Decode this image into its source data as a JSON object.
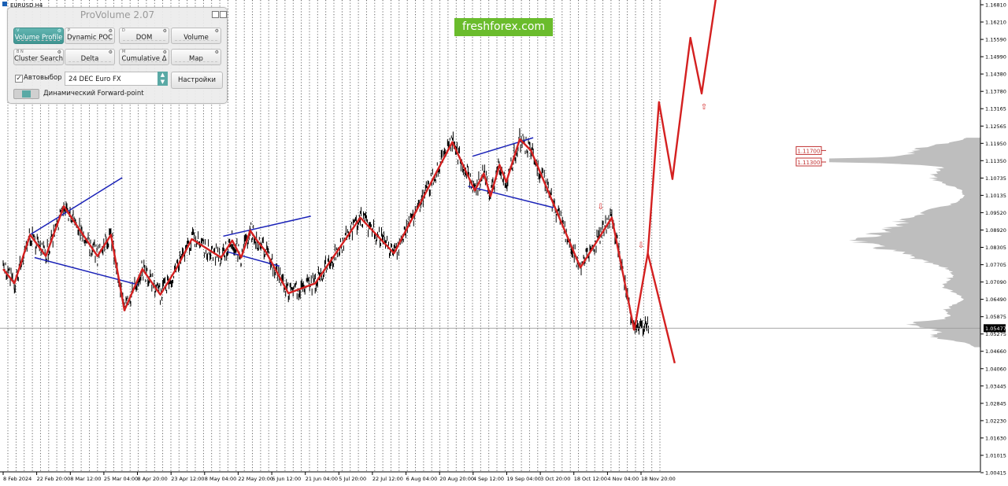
{
  "chart_data": {
    "type": "line",
    "title": "EURUSD,H4",
    "symbol_label": "EURUSD,H4",
    "ylim": [
      1.00415,
      1.1681
    ],
    "price_ticks": [
      "1.16810",
      "1.16210",
      "1.15590",
      "1.14990",
      "1.14380",
      "1.13780",
      "1.13165",
      "1.12565",
      "1.11950",
      "1.11350",
      "1.10735",
      "1.10135",
      "1.09520",
      "1.08920",
      "1.08305",
      "1.07705",
      "1.07090",
      "1.06490",
      "1.05875",
      "1.05275",
      "1.04660",
      "1.04060",
      "1.03445",
      "1.02845",
      "1.02230",
      "1.01630",
      "1.01015",
      "1.00415"
    ],
    "time_ticks": [
      "8 Feb 2024",
      "22 Feb 20:00",
      "8 Mar 12:00",
      "25 Mar 04:00",
      "8 Apr 20:00",
      "23 Apr 12:00",
      "8 May 04:00",
      "22 May 20:00",
      "6 Jun 12:00",
      "21 Jun 04:00",
      "5 Jul 20:00",
      "22 Jul 12:00",
      "6 Aug 04:00",
      "20 Aug 20:00",
      "4 Sep 12:00",
      "19 Sep 04:00",
      "3 Oct 20:00",
      "18 Oct 12:00",
      "4 Nov 04:00",
      "18 Nov 20:00"
    ],
    "current_price": "1.05477",
    "levels": [
      {
        "label": "1.11700",
        "price": 1.117
      },
      {
        "label": "1.11300",
        "price": 1.113
      }
    ],
    "zigzag_wave": {
      "name": "",
      "color": "#d42020",
      "x": [
        "8 Feb 2024",
        "13 Feb 2024",
        "20 Feb 2024",
        "27 Feb 2024",
        "6 Mar 2024",
        "21 Mar 2024",
        "27 Mar 2024",
        "2 Apr 2024",
        "10 Apr 2024",
        "18 Apr 2024",
        "25 Apr 2024",
        "2 May 2024",
        "15 May 2024",
        "20 May 2024",
        "24 May 2024",
        "28 May 2024",
        "31 May 2024",
        "4 Jun 2024",
        "14 Jun 2024",
        "26 Jun 2024",
        "16 Jul 2024",
        "31 Jul 2024",
        "26 Aug 2024",
        "5 Sep 2024",
        "9 Sep 2024",
        "12 Sep 2024",
        "16 Sep 2024",
        "19 Sep 2024",
        "25 Sep 2024",
        "30 Sep 2024",
        "22 Oct 2024",
        "5 Nov 2024",
        "15 Nov 2024"
      ],
      "values": [
        1.0755,
        1.0705,
        1.0875,
        1.08,
        1.0975,
        1.08,
        1.0875,
        1.061,
        1.0755,
        1.0665,
        1.0755,
        1.086,
        1.0795,
        1.0855,
        1.0795,
        1.089,
        1.0855,
        1.0815,
        1.067,
        1.0705,
        1.0935,
        1.081,
        1.12,
        1.103,
        1.109,
        1.101,
        1.112,
        1.106,
        1.121,
        1.117,
        1.076,
        1.0935,
        1.054
      ]
    },
    "projection": {
      "color": "#d42020",
      "up": {
        "x": [
          "15 Nov 2024",
          "21 Nov 2024",
          "26 Nov 2024",
          "2 Dec 2024",
          "10 Dec 2024",
          "15 Dec 2024",
          "24 Dec 2024"
        ],
        "values": [
          1.054,
          1.081,
          1.134,
          1.107,
          1.1565,
          1.137,
          1.1845
        ]
      },
      "down": {
        "x": [
          "21 Nov 2024",
          "3 Dec 2024"
        ],
        "values": [
          1.081,
          1.0425
        ]
      }
    },
    "channels": [
      {
        "color": "#1a22b8",
        "x": [
          "20 Feb 2024",
          "1 Apr 2024"
        ],
        "values": [
          1.0875,
          1.1075
        ]
      },
      {
        "color": "#1a22b8",
        "x": [
          "22 Feb 2024",
          "8 Apr 2024"
        ],
        "values": [
          1.0795,
          1.07
        ]
      },
      {
        "color": "#1a22b8",
        "x": [
          "16 May 2024",
          "24 Jun 2024"
        ],
        "values": [
          1.087,
          1.094
        ]
      },
      {
        "color": "#1a22b8",
        "x": [
          "18 May 2024",
          "10 Jun 2024"
        ],
        "values": [
          1.0815,
          1.0765
        ]
      },
      {
        "color": "#1a22b8",
        "x": [
          "4 Sep 2024",
          "1 Oct 2024"
        ],
        "values": [
          1.115,
          1.1215
        ]
      },
      {
        "color": "#1a22b8",
        "x": [
          "2 Sep 2024",
          "10 Oct 2024"
        ],
        "values": [
          1.1045,
          1.097
        ]
      }
    ],
    "arrows": [
      {
        "symbol": "⇩",
        "x": "31 Oct 2024",
        "value": 1.0965
      },
      {
        "symbol": "⇩",
        "x": "18 Nov 2024",
        "value": 1.083
      },
      {
        "symbol": "⇧",
        "x": "16 Dec 2024",
        "value": 1.1315
      }
    ],
    "volume_profile_color": "#bebebe",
    "grid": "vertical dotted"
  },
  "panel": {
    "title": "ProVolume 2.07",
    "buttons": [
      {
        "label": "Volume Profile",
        "hotkey": "V",
        "active": true
      },
      {
        "label": "Dynamic POC",
        "hotkey": "P",
        "active": false
      },
      {
        "label": "DOM",
        "hotkey": "D",
        "active": false
      },
      {
        "label": "Volume",
        "hotkey": "",
        "active": false
      },
      {
        "label": "Cluster Search",
        "hotkey": "B N",
        "active": false
      },
      {
        "label": "Delta",
        "hotkey": "",
        "active": false
      },
      {
        "label": "Cumulative Δ",
        "hotkey": "M",
        "active": false
      },
      {
        "label": "Map",
        "hotkey": "",
        "active": false
      }
    ],
    "autoselect_label": "Автовыбор",
    "autoselect_checked": true,
    "instrument_value": "24 DEC Euro FX",
    "settings_label": "Настройки",
    "forward_point_label": "Динамический Forward-point"
  },
  "watermark": "freshforex.com"
}
